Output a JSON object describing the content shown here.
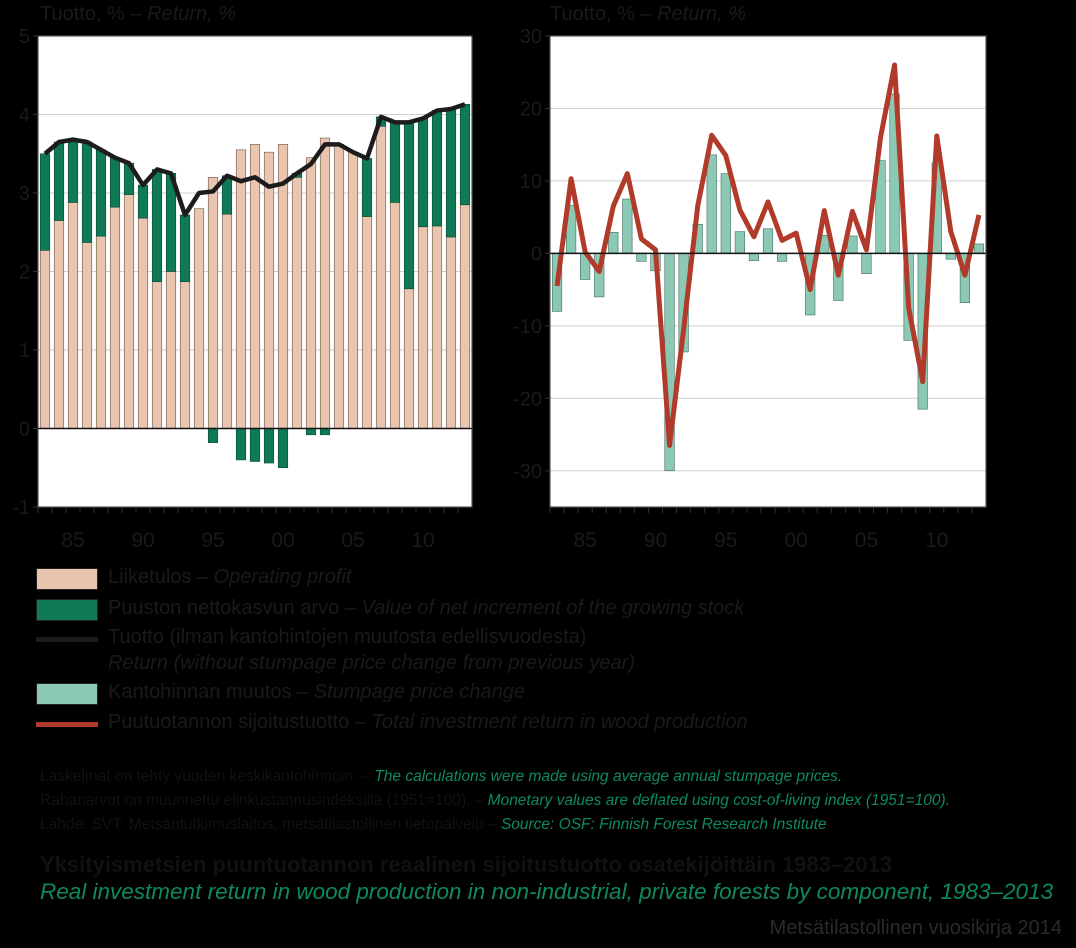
{
  "chart_data": [
    {
      "type": "bar",
      "ylabel_prefix": "Tuotto, % – ",
      "ylabel_italic": "Return, %",
      "ylim": [
        -1,
        5
      ],
      "yticks": [
        -1,
        0,
        1,
        2,
        3,
        4,
        5
      ],
      "years": [
        1983,
        1984,
        1985,
        1986,
        1987,
        1988,
        1989,
        1990,
        1991,
        1992,
        1993,
        1994,
        1995,
        1996,
        1997,
        1998,
        1999,
        2000,
        2001,
        2002,
        2003,
        2004,
        2005,
        2006,
        2007,
        2008,
        2009,
        2010,
        2011,
        2012,
        2013
      ],
      "xtick_labels": [
        {
          "year": 1985,
          "label": "85"
        },
        {
          "year": 1990,
          "label": "90"
        },
        {
          "year": 1995,
          "label": "95"
        },
        {
          "year": 2000,
          "label": "00"
        },
        {
          "year": 2005,
          "label": "05"
        },
        {
          "year": 2010,
          "label": "10"
        }
      ],
      "series": [
        {
          "name": "Liiketulos – Operating profit",
          "color": "#e9c4ae",
          "values": [
            2.27,
            2.65,
            2.88,
            2.37,
            2.45,
            2.82,
            2.98,
            2.68,
            1.87,
            2.0,
            1.87,
            2.8,
            3.2,
            2.73,
            3.55,
            3.62,
            3.52,
            3.62,
            3.2,
            3.45,
            3.7,
            3.62,
            3.52,
            2.7,
            3.85,
            2.88,
            1.78,
            2.57,
            2.58,
            2.44,
            2.85
          ]
        },
        {
          "name": "Puuston nettokasvun arvo – Value of net increment of the growing stock",
          "color": "#0f7a55",
          "values": [
            1.23,
            1.0,
            0.8,
            1.28,
            1.1,
            0.63,
            0.4,
            0.42,
            1.43,
            1.25,
            0.85,
            0.0,
            -0.18,
            0.49,
            -0.4,
            -0.42,
            -0.44,
            -0.5,
            0.05,
            -0.08,
            -0.08,
            0.0,
            0.0,
            0.74,
            0.12,
            1.02,
            2.12,
            1.38,
            1.47,
            1.63,
            1.28
          ]
        },
        {
          "name": "Tuotto (ilman kantohintojen muutosta edellisvuodesta) – Return (without stumpage price change from previous year)",
          "color": "#1c1c1c",
          "values": [
            3.5,
            3.65,
            3.68,
            3.65,
            3.55,
            3.45,
            3.38,
            3.1,
            3.3,
            3.25,
            2.72,
            3.0,
            3.02,
            3.22,
            3.15,
            3.2,
            3.08,
            3.12,
            3.25,
            3.37,
            3.62,
            3.62,
            3.52,
            3.44,
            3.97,
            3.9,
            3.9,
            3.95,
            4.05,
            4.07,
            4.13
          ]
        }
      ]
    },
    {
      "type": "bar",
      "ylabel_prefix": "Tuotto, % – ",
      "ylabel_italic": "Return, %",
      "ylim": [
        -35,
        30
      ],
      "yticks": [
        -30,
        -20,
        -10,
        0,
        10,
        20,
        30
      ],
      "years": [
        1983,
        1984,
        1985,
        1986,
        1987,
        1988,
        1989,
        1990,
        1991,
        1992,
        1993,
        1994,
        1995,
        1996,
        1997,
        1998,
        1999,
        2000,
        2001,
        2002,
        2003,
        2004,
        2005,
        2006,
        2007,
        2008,
        2009,
        2010,
        2011,
        2012,
        2013
      ],
      "xtick_labels": [
        {
          "year": 1985,
          "label": "85"
        },
        {
          "year": 1990,
          "label": "90"
        },
        {
          "year": 1995,
          "label": "95"
        },
        {
          "year": 2000,
          "label": "00"
        },
        {
          "year": 2005,
          "label": "05"
        },
        {
          "year": 2010,
          "label": "10"
        }
      ],
      "series": [
        {
          "name": "Kantohinnan muutos – Stumpage price change",
          "color": "#8cc9b5",
          "values": [
            -8.0,
            6.6,
            -3.6,
            -6.0,
            2.9,
            7.5,
            -1.1,
            -2.4,
            -30.0,
            -13.6,
            4.0,
            13.6,
            11.0,
            3.0,
            -1.0,
            3.4,
            -1.1,
            0.0,
            -8.5,
            2.5,
            -6.5,
            2.4,
            -2.8,
            12.8,
            22.0,
            -12.0,
            -21.5,
            12.5,
            -0.8,
            -6.8,
            1.3
          ]
        },
        {
          "name": "Puutuotannon sijoitustuotto – Total investment return in wood production",
          "color": "#b13a2b",
          "values": [
            -4.5,
            10.3,
            0.2,
            -2.5,
            6.5,
            11.0,
            2.0,
            0.5,
            -26.5,
            -10.5,
            6.5,
            16.3,
            13.5,
            6.0,
            2.3,
            7.1,
            1.8,
            2.8,
            -5.0,
            5.9,
            -3.0,
            5.8,
            0.5,
            16.0,
            26.0,
            -7.5,
            -17.7,
            16.2,
            3.0,
            -3.0,
            5.3
          ]
        }
      ]
    }
  ],
  "legend": [
    {
      "kind": "swatch",
      "color": "#e9c4ae",
      "fi": "Liiketulos – ",
      "en": "Operating profit"
    },
    {
      "kind": "swatch",
      "color": "#0f7a55",
      "fi": "Puuston nettokasvun arvo – ",
      "en": "Value of net increment of the growing stock"
    },
    {
      "kind": "line",
      "color": "#1c1c1c",
      "fi": "Tuotto (ilman kantohintojen muutosta edellisvuodesta)",
      "en": "Return (without stumpage price change from previous year)"
    },
    {
      "kind": "swatch",
      "color": "#8cc9b5",
      "fi": "Kantohinnan muutos – ",
      "en": "Stumpage price change"
    },
    {
      "kind": "line",
      "color": "#b13a2b",
      "fi": "Puutuotannon sijoitustuotto – ",
      "en": "Total investment return in wood production"
    }
  ],
  "notes": [
    {
      "fi": "Laskelmat on tehty vuoden keskikantohinnoin. – ",
      "en": "The calculations were made using average annual stumpage prices."
    },
    {
      "fi": "Rahanarvot on muunnettu elinkustannusindeksillä (1951=100). – ",
      "en": "Monetary values are deflated using cost-of-living index (1951=100)."
    },
    {
      "fi": "Lähde: SVT: Metsäntutkimuslaitos, metsätilastollinen tietopalvelu – ",
      "en": "Source: OSF: Finnish Forest Research Institute"
    }
  ],
  "title_fi": "Yksityismetsien puuntuotannon reaalinen sijoitustuotto osatekijöittäin 1983–2013",
  "title_en": "Real investment return in wood production in non-industrial, private forests by component, 1983–2013",
  "book": "Metsätilastollinen vuosikirja 2014"
}
